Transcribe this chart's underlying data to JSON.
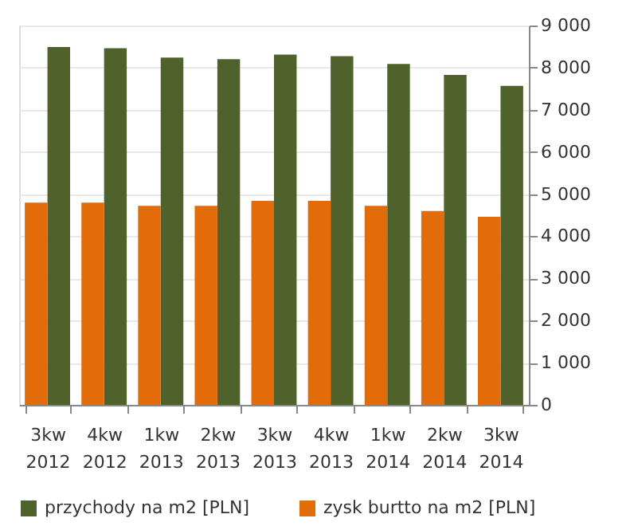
{
  "chart_data": {
    "type": "bar",
    "categories": [
      "3kw 2012",
      "4kw 2012",
      "1kw 2013",
      "2kw 2013",
      "3kw 2013",
      "4kw 2013",
      "1kw 2014",
      "2kw 2014",
      "3kw 2014"
    ],
    "series": [
      {
        "name": "przychody na m2 [PLN]",
        "color": "#4f622b",
        "values": [
          8490,
          8460,
          8240,
          8200,
          8310,
          8270,
          8090,
          7830,
          7570
        ]
      },
      {
        "name": "zysk burtto na m2 [PLN]",
        "color": "#e36c0a",
        "values": [
          4800,
          4800,
          4720,
          4720,
          4840,
          4840,
          4720,
          4600,
          4460
        ]
      }
    ],
    "ylim": [
      0,
      9000
    ],
    "yticks": [
      0,
      1000,
      2000,
      3000,
      4000,
      5000,
      6000,
      7000,
      8000,
      9000
    ],
    "grid": "y",
    "legend": "bottom"
  }
}
